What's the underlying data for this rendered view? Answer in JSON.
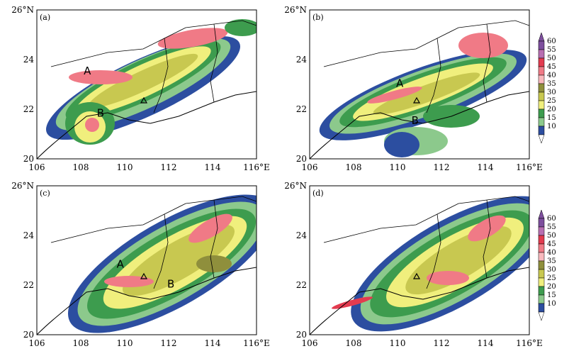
{
  "panels": [
    {
      "label": "(a)",
      "markers": [
        {
          "text": "A",
          "lon": 108.3,
          "lat": 23.4
        },
        {
          "text": "B",
          "lon": 108.9,
          "lat": 21.7
        }
      ]
    },
    {
      "label": "(b)",
      "markers": [
        {
          "text": "A",
          "lon": 110.1,
          "lat": 22.9
        },
        {
          "text": "B",
          "lon": 110.8,
          "lat": 21.4
        }
      ]
    },
    {
      "label": "(c)",
      "markers": [
        {
          "text": "A",
          "lon": 109.8,
          "lat": 22.7
        },
        {
          "text": "B",
          "lon": 112.1,
          "lat": 21.9
        }
      ]
    },
    {
      "label": "(d)",
      "markers": []
    }
  ],
  "axes": {
    "x_ticks": [
      "106",
      "108",
      "110",
      "112",
      "114",
      "116°E"
    ],
    "y_ticks": [
      "20",
      "22",
      "24",
      "26°N"
    ],
    "lon_range": [
      106,
      116
    ],
    "lat_range": [
      20,
      26
    ]
  },
  "colorbar": {
    "labels": [
      "60",
      "55",
      "50",
      "45",
      "40",
      "35",
      "30",
      "25",
      "20",
      "15",
      "10"
    ],
    "colors": [
      "#7e4f9e",
      "#b86fb2",
      "#e33b4f",
      "#f07a86",
      "#f9b9bd",
      "#8f8f3c",
      "#c8c850",
      "#f0ef7d",
      "#3d9c4e",
      "#8cc98c",
      "#2c4ea0"
    ]
  }
}
